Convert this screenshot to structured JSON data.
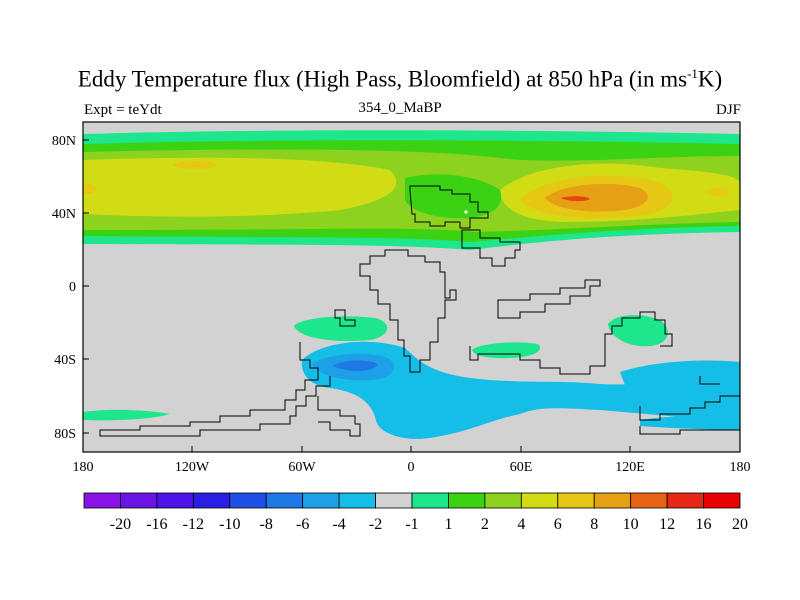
{
  "title": {
    "main": "Eddy Temperature flux (High Pass, Bloomfield) at 850 hPa (in ms",
    "superscript": "-1",
    "suffix": "K)"
  },
  "subtitle": {
    "left": "Expt = teYdt",
    "center": "354_0_MaBP",
    "right": "DJF"
  },
  "axes": {
    "y_ticks": [
      "80N",
      "40N",
      "0",
      "40S",
      "80S"
    ],
    "x_ticks": [
      "180",
      "120W",
      "60W",
      "0",
      "60E",
      "120E",
      "180"
    ]
  },
  "colorbar": {
    "colors": [
      "#8a14e6",
      "#6a14e6",
      "#4a14e6",
      "#2a1ee6",
      "#1e50e6",
      "#1e78e6",
      "#1ea0e6",
      "#14bee6",
      "#d2d2d2",
      "#1ee68c",
      "#3cd214",
      "#8cd21e",
      "#d2dc14",
      "#e6c814",
      "#e6a014",
      "#e66414",
      "#e62814",
      "#e60000"
    ],
    "labels": [
      "-20",
      "-16",
      "-12",
      "-10",
      "-8",
      "-6",
      "-4",
      "-2",
      "-1",
      "1",
      "2",
      "4",
      "6",
      "8",
      "10",
      "12",
      "16",
      "20"
    ]
  },
  "palette": {
    "background": "#d2d2d2",
    "green": "#3cd214",
    "light_green": "#8cd21e",
    "yellow": "#d2dc14",
    "orange": "#e6c814",
    "dark_orange": "#e6a014",
    "red": "#e64614",
    "teal": "#1ee68c",
    "cyan": "#14bee6",
    "blue": "#1ea0e6"
  }
}
